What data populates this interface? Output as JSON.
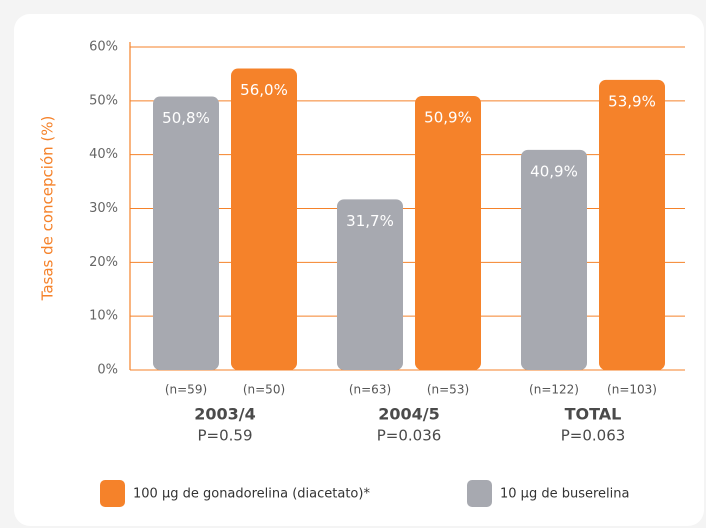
{
  "chart_data": {
    "type": "bar",
    "y_label": "Tasas de concepción (%)",
    "categories": [
      "2003/4",
      "2004/5",
      "TOTAL"
    ],
    "p_values": [
      "P=0.59",
      "P=0.036",
      "P=0.063"
    ],
    "series": [
      {
        "name": "10 µg de buserelina",
        "color": "#a7a9b0",
        "values": [
          50.8,
          31.7,
          40.9
        ],
        "value_labels": [
          "50,8%",
          "31,7%",
          "40,9%"
        ],
        "n_labels": [
          "(n=59)",
          "(n=63)",
          "(n=122)"
        ]
      },
      {
        "name": "100 µg de gonadorelina (diacetato)*",
        "color": "#f5822a",
        "values": [
          56.0,
          50.9,
          53.9
        ],
        "value_labels": [
          "56,0%",
          "50,9%",
          "53,9%"
        ],
        "n_labels": [
          "(n=50)",
          "(n=53)",
          "(n=103)"
        ]
      }
    ],
    "ylim": [
      0,
      60
    ],
    "yticks": [
      {
        "value": 0,
        "label": "0%"
      },
      {
        "value": 10,
        "label": "10%"
      },
      {
        "value": 20,
        "label": "20%"
      },
      {
        "value": 30,
        "label": "30%"
      },
      {
        "value": 40,
        "label": "40%"
      },
      {
        "value": 50,
        "label": "50%"
      },
      {
        "value": 60,
        "label": "60%"
      }
    ],
    "grid": true,
    "axis_color": "#f5822a"
  }
}
